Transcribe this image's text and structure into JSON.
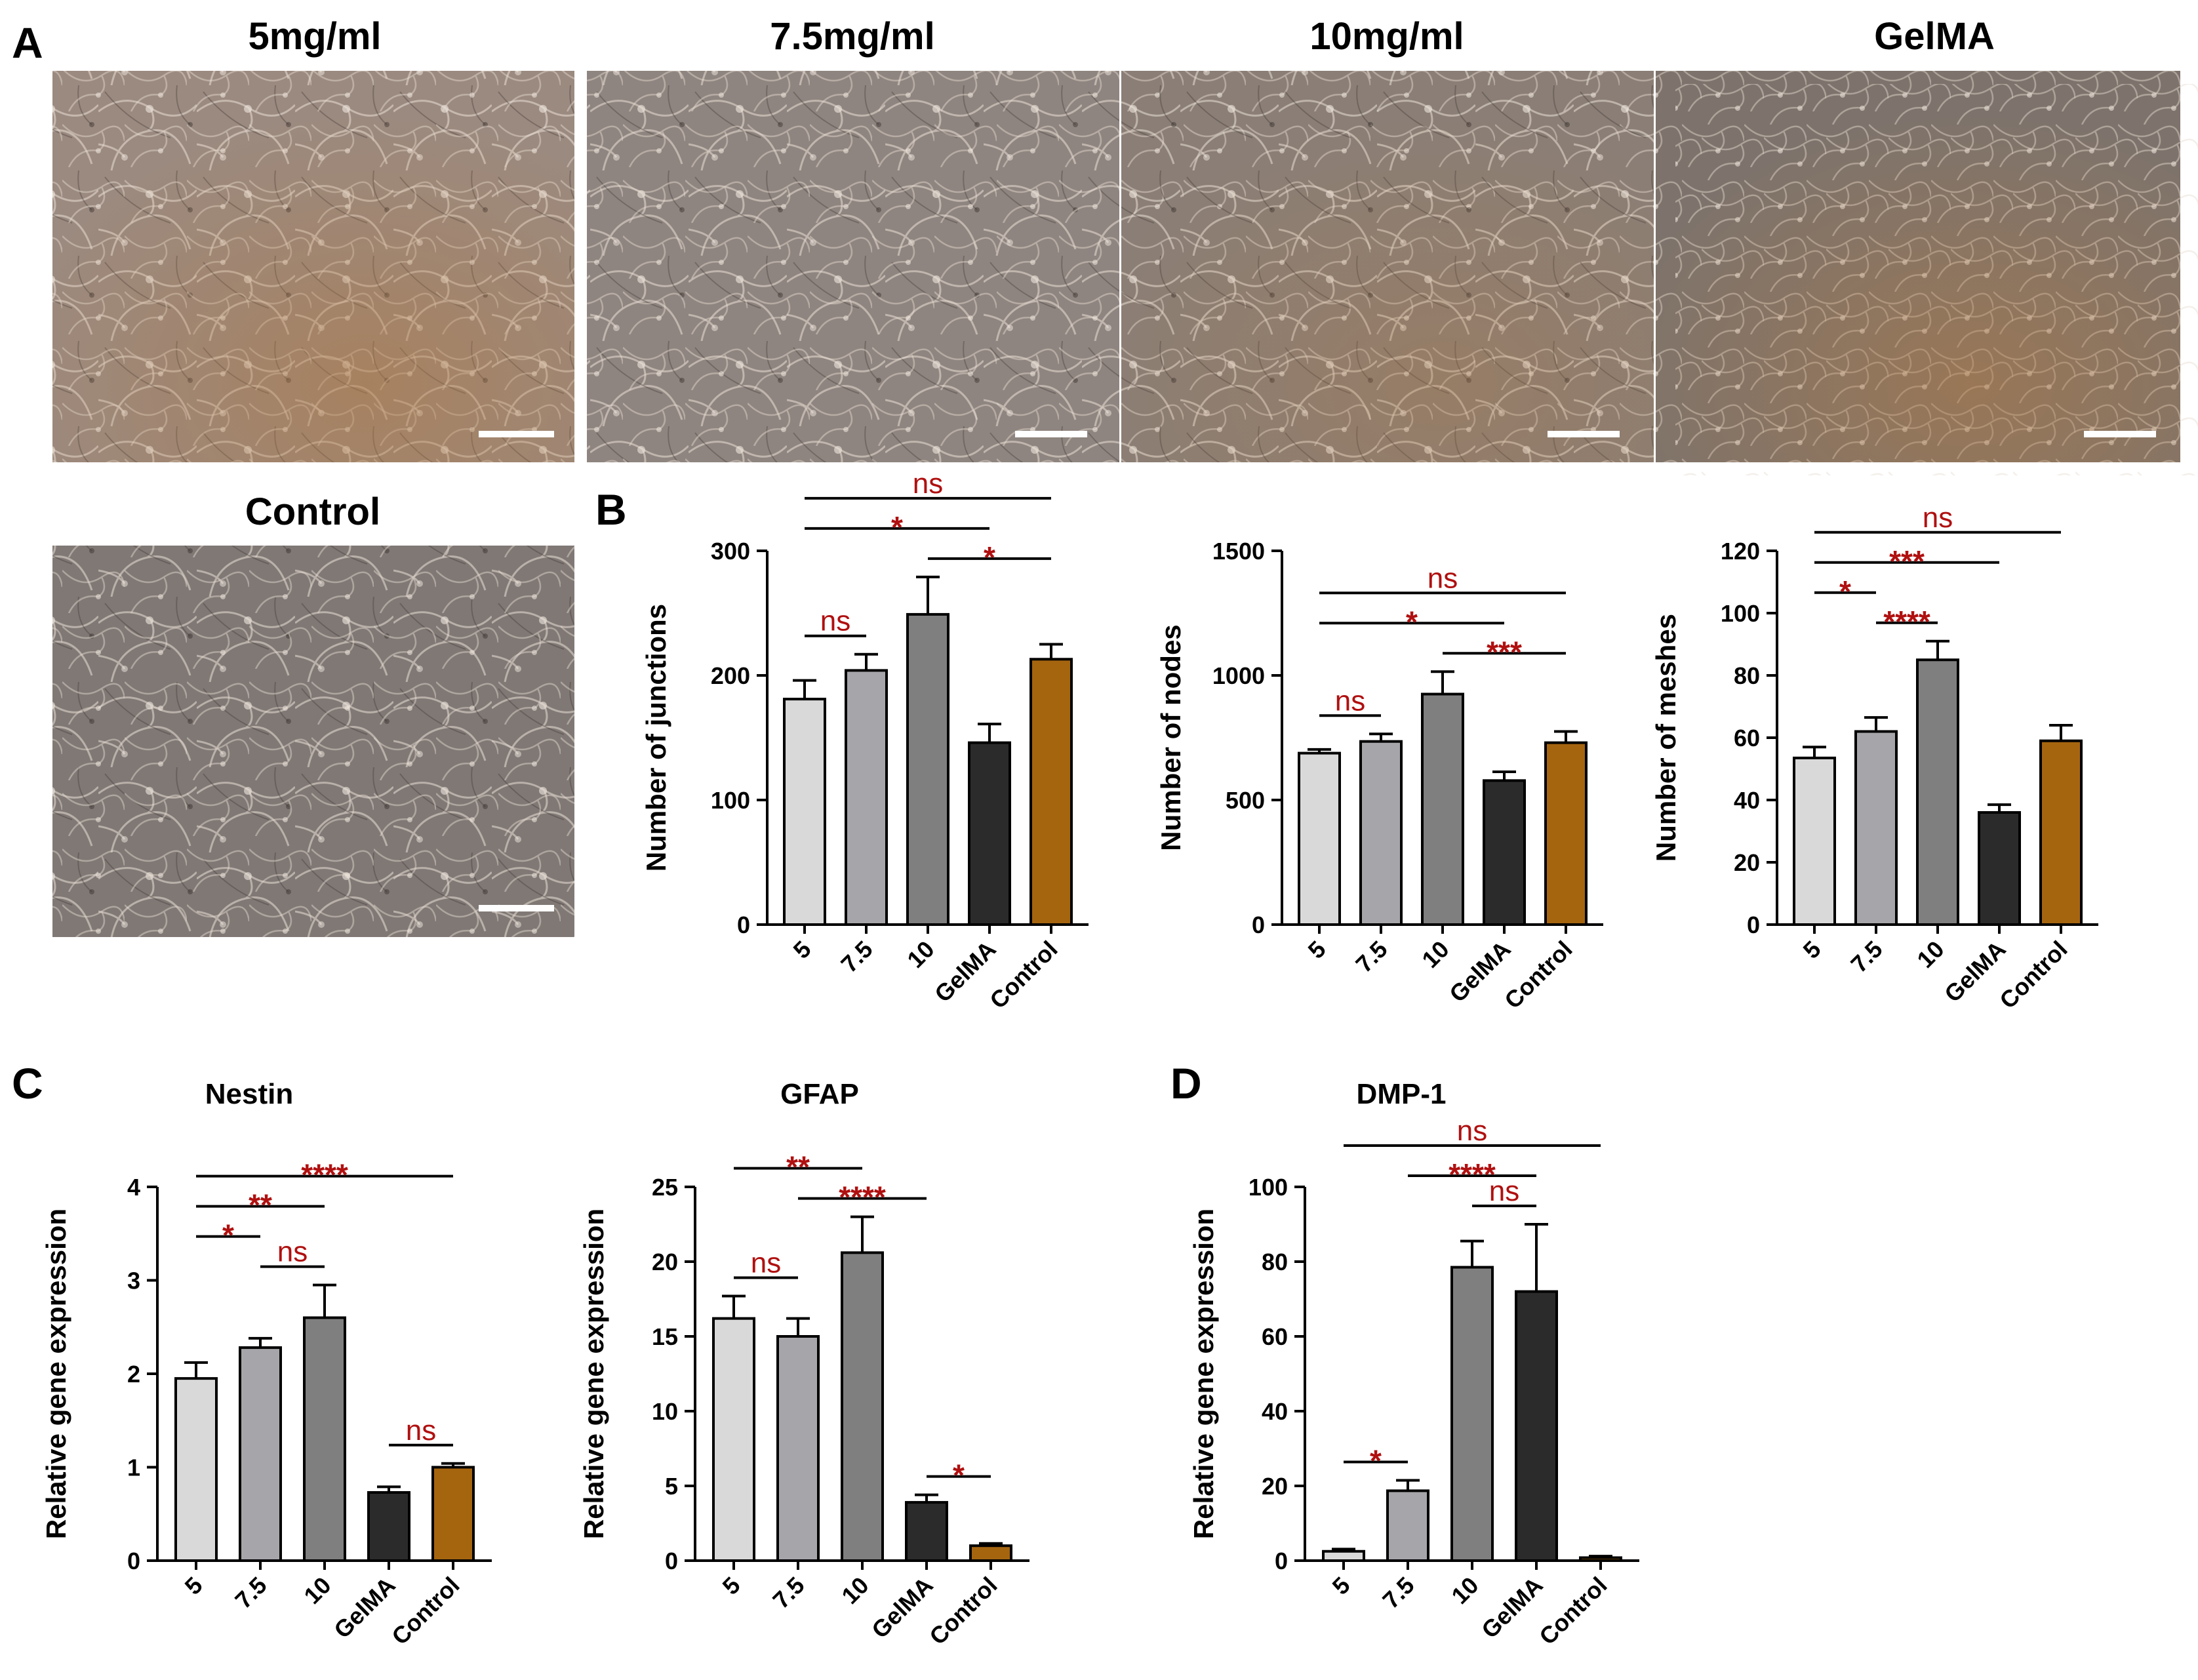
{
  "panel_labels": {
    "a": "A",
    "b": "B",
    "c": "C",
    "d": "D"
  },
  "micrographs": [
    {
      "title": "5mg/ml",
      "tint": "#9b8a80"
    },
    {
      "title": "7.5mg/ml",
      "tint": "#8f8580"
    },
    {
      "title": "10mg/ml",
      "tint": "#8a7e76"
    },
    {
      "title": "GelMA",
      "tint": "#7d736c"
    },
    {
      "title": "Control",
      "tint": "#7f7875"
    }
  ],
  "colors": {
    "c5": "#d9d9d9",
    "c75": "#a6a6aa",
    "c10": "#7f7f80",
    "gelma": "#2b2b2b",
    "control": "#a5650f",
    "sig": "#b01010"
  },
  "chart_data": [
    {
      "type": "bar",
      "title": "",
      "ylabel": "Number of  junctions",
      "categories": [
        "5",
        "7.5",
        "10",
        "GelMA",
        "Control"
      ],
      "values": [
        181,
        204,
        249,
        146,
        213
      ],
      "errors": [
        15,
        13,
        30,
        15,
        12
      ],
      "ylim": [
        0,
        300
      ],
      "yticks": [
        "0",
        "100",
        "200",
        "300"
      ],
      "significance": [
        {
          "from": 0,
          "to": 4,
          "label": "ns"
        },
        {
          "from": 0,
          "to": 3,
          "label": "*"
        },
        {
          "from": 2,
          "to": 4,
          "label": "*"
        },
        {
          "from": 0,
          "to": 1,
          "label": "ns"
        }
      ]
    },
    {
      "type": "bar",
      "title": "",
      "ylabel": "Number of  nodes",
      "categories": [
        "5",
        "7.5",
        "10",
        "GelMA",
        "Control"
      ],
      "values": [
        688,
        735,
        925,
        578,
        730
      ],
      "errors": [
        15,
        30,
        90,
        35,
        45
      ],
      "ylim": [
        0,
        1500
      ],
      "yticks": [
        "0",
        "500",
        "1000",
        "1500"
      ],
      "significance": [
        {
          "from": 2,
          "to": 4,
          "label": "***"
        },
        {
          "from": 0,
          "to": 3,
          "label": "*"
        },
        {
          "from": 0,
          "to": 4,
          "label": "ns"
        },
        {
          "from": 0,
          "to": 1,
          "label": "ns"
        }
      ]
    },
    {
      "type": "bar",
      "title": "",
      "ylabel": "Number of meshes",
      "categories": [
        "5",
        "7.5",
        "10",
        "GelMA",
        "Control"
      ],
      "values": [
        53.5,
        62,
        85,
        36,
        59
      ],
      "errors": [
        3.5,
        4.5,
        6,
        2.5,
        5
      ],
      "ylim": [
        0,
        120
      ],
      "yticks": [
        "0",
        "20",
        "40",
        "60",
        "80",
        "100",
        "120"
      ],
      "significance": [
        {
          "from": 0,
          "to": 4,
          "label": "ns"
        },
        {
          "from": 0,
          "to": 3,
          "label": "***"
        },
        {
          "from": 1,
          "to": 2,
          "label": "****"
        },
        {
          "from": 0,
          "to": 1,
          "label": "*"
        }
      ]
    },
    {
      "type": "bar",
      "title": "Nestin",
      "ylabel": "Relative gene expression",
      "categories": [
        "5",
        "7.5",
        "10",
        "GelMA",
        "Control"
      ],
      "values": [
        1.95,
        2.28,
        2.6,
        0.73,
        1.0
      ],
      "errors": [
        0.17,
        0.1,
        0.35,
        0.06,
        0.04
      ],
      "ylim": [
        0,
        4
      ],
      "yticks": [
        "0",
        "1",
        "2",
        "3",
        "4"
      ],
      "significance": [
        {
          "from": 0,
          "to": 4,
          "label": "****"
        },
        {
          "from": 0,
          "to": 2,
          "label": "**"
        },
        {
          "from": 1,
          "to": 2,
          "label": "ns"
        },
        {
          "from": 0,
          "to": 1,
          "label": "*"
        },
        {
          "from": 3,
          "to": 4,
          "label": "ns"
        }
      ]
    },
    {
      "type": "bar",
      "title": "GFAP",
      "ylabel": "Relative gene expression",
      "categories": [
        "5",
        "7.5",
        "10",
        "GelMA",
        "Control"
      ],
      "values": [
        16.2,
        15.0,
        20.6,
        3.9,
        1.0
      ],
      "errors": [
        1.5,
        1.2,
        2.4,
        0.5,
        0.15
      ],
      "ylim": [
        0,
        25
      ],
      "yticks": [
        "0",
        "5",
        "10",
        "15",
        "20",
        "25"
      ],
      "significance": [
        {
          "from": 1,
          "to": 3,
          "label": "****"
        },
        {
          "from": 0,
          "to": 2,
          "label": "**"
        },
        {
          "from": 0,
          "to": 1,
          "label": "ns"
        },
        {
          "from": 3,
          "to": 4,
          "label": "*"
        }
      ]
    },
    {
      "type": "bar",
      "title": "DMP-1",
      "ylabel": "Relative gene expression",
      "categories": [
        "5",
        "7.5",
        "10",
        "GelMA",
        "Control"
      ],
      "values": [
        2.5,
        18.7,
        78.5,
        72.0,
        0.8
      ],
      "errors": [
        0.6,
        2.8,
        7,
        18,
        0.4
      ],
      "ylim": [
        0,
        100
      ],
      "yticks": [
        "0",
        "20",
        "40",
        "60",
        "80",
        "100"
      ],
      "significance": [
        {
          "from": 0,
          "to": 4,
          "label": "ns"
        },
        {
          "from": 1,
          "to": 3,
          "label": "****"
        },
        {
          "from": 2,
          "to": 3,
          "label": "ns"
        },
        {
          "from": 0,
          "to": 1,
          "label": "*"
        }
      ]
    }
  ]
}
